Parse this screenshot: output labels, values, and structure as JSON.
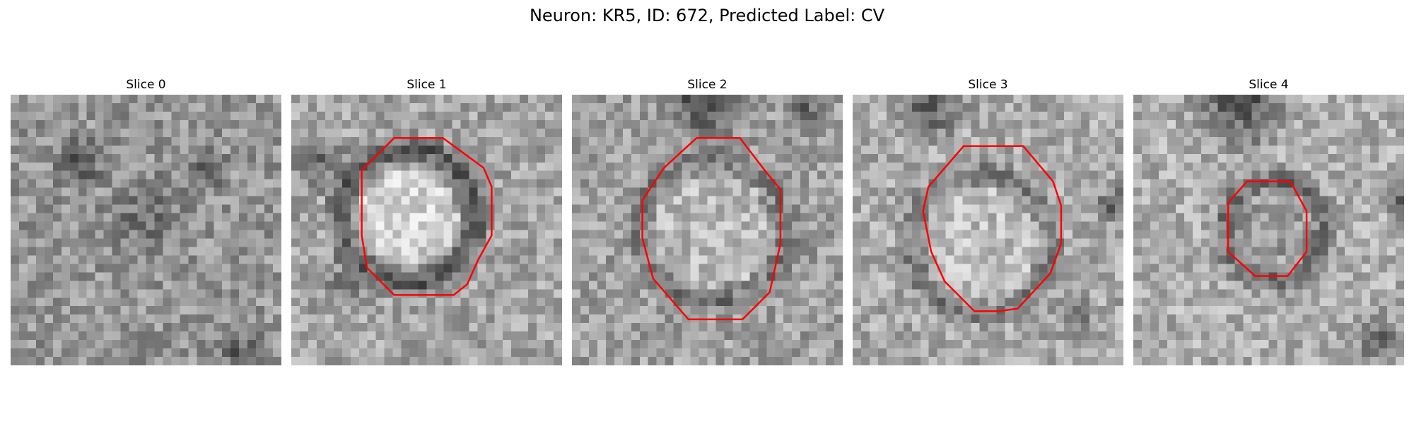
{
  "figure": {
    "title": "Neuron: KR5, ID: 672, Predicted Label: CV",
    "outline_color": "#ff0000"
  },
  "panels": [
    {
      "title": "Slice 0",
      "has_outline": false
    },
    {
      "title": "Slice 1",
      "has_outline": true
    },
    {
      "title": "Slice 2",
      "has_outline": true
    },
    {
      "title": "Slice 3",
      "has_outline": true
    },
    {
      "title": "Slice 4",
      "has_outline": true
    }
  ]
}
